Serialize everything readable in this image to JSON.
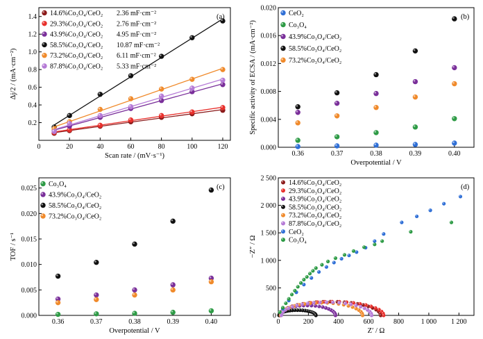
{
  "colors": {
    "c146": "#8b1a1a",
    "c293": "#e8302c",
    "c439": "#7a2f9a",
    "c585": "#111111",
    "c732": "#f08a2b",
    "c878": "#b57ad6",
    "ceo2": "#2f6fd6",
    "co3o4": "#2e9b46"
  },
  "chart_data": [
    {
      "panel": "a",
      "type": "scatter",
      "xlabel": "Scan rate / (mV·s⁻¹)",
      "ylabel": "Δj/2 / (mA·cm⁻²)",
      "xlim": [
        0,
        125
      ],
      "ylim": [
        0,
        1.5
      ],
      "xticks": [
        "0",
        "20",
        "40",
        "60",
        "80",
        "100",
        "120"
      ],
      "yticks": [
        "0.2",
        "0.4",
        "0.6",
        "0.8",
        "1.0",
        "1.2",
        "1.4"
      ],
      "x": [
        10,
        20,
        40,
        60,
        80,
        100,
        120
      ],
      "fit_lines": true,
      "legend_position": "top-left",
      "series": [
        {
          "name": "14.6%Co₃O₄/CeO₂",
          "color_key": "c146",
          "values": [
            0.08,
            0.11,
            0.16,
            0.21,
            0.26,
            0.3,
            0.34
          ],
          "annotation": "2.36 mF·cm⁻²"
        },
        {
          "name": "29.3%Co₃O₄/CeO₂",
          "color_key": "c293",
          "values": [
            0.09,
            0.12,
            0.17,
            0.23,
            0.28,
            0.32,
            0.37
          ],
          "annotation": "2.76 mF·cm⁻²"
        },
        {
          "name": "43.9%Co₃O₄/CeO₂",
          "color_key": "c439",
          "values": [
            0.11,
            0.16,
            0.26,
            0.36,
            0.45,
            0.55,
            0.63
          ],
          "annotation": "4.95 mF·cm⁻²"
        },
        {
          "name": "58.5%Co₃O₄/CeO₂",
          "color_key": "c585",
          "values": [
            0.15,
            0.28,
            0.52,
            0.73,
            0.95,
            1.16,
            1.35
          ],
          "annotation": "10.87 mF·cm⁻²"
        },
        {
          "name": "73.2%Co₃O₄/CeO₂",
          "color_key": "c732",
          "values": [
            0.13,
            0.21,
            0.35,
            0.47,
            0.58,
            0.69,
            0.8
          ],
          "annotation": "6.11 mF·cm⁻²"
        },
        {
          "name": "87.8%Co₃O₄/CeO₂",
          "color_key": "c878",
          "values": [
            0.1,
            0.19,
            0.28,
            0.38,
            0.5,
            0.59,
            0.68
          ],
          "annotation": "5.33 mF·cm⁻²"
        }
      ]
    },
    {
      "panel": "b",
      "type": "scatter",
      "xlabel": "Overpotential / V",
      "ylabel": "Specific activity of ECSA / (mA·cm⁻²)",
      "xlim": [
        0.355,
        0.405
      ],
      "ylim": [
        0,
        0.02
      ],
      "xticks": [
        "0.36",
        "0.37",
        "0.38",
        "0.39",
        "0.40"
      ],
      "yticks": [
        "0.000",
        "0.004",
        "0.008",
        "0.012",
        "0.016",
        "0.020"
      ],
      "x": [
        0.36,
        0.37,
        0.38,
        0.39,
        0.4
      ],
      "legend_position": "top-left",
      "series": [
        {
          "name": "CeO₂",
          "color_key": "ceo2",
          "values": [
            0.0001,
            0.0002,
            0.0003,
            0.0004,
            0.0006
          ]
        },
        {
          "name": "Co₃O₄",
          "color_key": "co3o4",
          "values": [
            0.001,
            0.0015,
            0.0021,
            0.0029,
            0.0041
          ]
        },
        {
          "name": "43.9%Co₃O₄/CeO₂",
          "color_key": "c439",
          "values": [
            0.005,
            0.0063,
            0.0077,
            0.0094,
            0.0114
          ]
        },
        {
          "name": "58.5%Co₃O₄/CeO₂",
          "color_key": "c585",
          "values": [
            0.0058,
            0.0078,
            0.0104,
            0.0138,
            0.0184
          ]
        },
        {
          "name": "73.2%Co₃O₄/CeO₂",
          "color_key": "c732",
          "values": [
            0.0035,
            0.0045,
            0.0057,
            0.0072,
            0.0091
          ]
        }
      ]
    },
    {
      "panel": "c",
      "type": "scatter",
      "xlabel": "Overpotential / V",
      "ylabel": "TOF / s⁻¹",
      "xlim": [
        0.355,
        0.405
      ],
      "ylim": [
        0,
        0.027
      ],
      "xticks": [
        "0.36",
        "0.37",
        "0.38",
        "0.39",
        "0.40"
      ],
      "yticks": [
        "0.000",
        "0.005",
        "0.010",
        "0.015",
        "0.020",
        "0.025"
      ],
      "x": [
        0.36,
        0.37,
        0.38,
        0.39,
        0.4
      ],
      "legend_position": "top-left",
      "series": [
        {
          "name": "Co₃O₄",
          "color_key": "co3o4",
          "values": [
            0.0002,
            0.0003,
            0.0004,
            0.0006,
            0.0009
          ]
        },
        {
          "name": "43.9%Co₃O₄/CeO₂",
          "color_key": "c439",
          "values": [
            0.0032,
            0.004,
            0.005,
            0.006,
            0.0073
          ]
        },
        {
          "name": "58.5%Co₃O₄/CeO₂",
          "color_key": "c585",
          "values": [
            0.0077,
            0.0104,
            0.014,
            0.0185,
            0.0246
          ]
        },
        {
          "name": "73.2%Co₃O₄/CeO₂",
          "color_key": "c732",
          "values": [
            0.0025,
            0.0031,
            0.004,
            0.005,
            0.0066
          ]
        }
      ]
    },
    {
      "panel": "d",
      "type": "scatter",
      "xlabel": "Z′ / Ω",
      "ylabel": "−Z″ / Ω",
      "xlim": [
        0,
        1300
      ],
      "ylim": [
        0,
        2500
      ],
      "xticks": [
        "0",
        "200",
        "400",
        "600",
        "800",
        "1 000",
        "1 200"
      ],
      "yticks": [
        "0",
        "500",
        "1 000",
        "1 500",
        "2 000",
        "2 500"
      ],
      "legend_position": "top-left",
      "series": [
        {
          "name": "14.6%Co₃O₄/CeO₂",
          "color_key": "c146",
          "semicircle": {
            "r0": 10,
            "r1": 680,
            "peak": 250
          }
        },
        {
          "name": "29.3%Co₃O₄/CeO₂",
          "color_key": "c293",
          "semicircle": {
            "r0": 15,
            "r1": 700,
            "peak": 250
          }
        },
        {
          "name": "43.9%Co₃O₄/CeO₂",
          "color_key": "c439",
          "semicircle": {
            "r0": 8,
            "r1": 380,
            "peak": 180
          }
        },
        {
          "name": "58.5%Co₃O₄/CeO₂",
          "color_key": "c585",
          "semicircle": {
            "r0": 5,
            "r1": 250,
            "peak": 95
          }
        },
        {
          "name": "73.2%Co₃O₄/CeO₂",
          "color_key": "c732",
          "semicircle": {
            "r0": 15,
            "r1": 560,
            "peak": 230
          }
        },
        {
          "name": "87.8%Co₃O₄/CeO₂",
          "color_key": "c878",
          "semicircle": {
            "r0": 20,
            "r1": 620,
            "peak": 240
          }
        },
        {
          "name": "CeO₂",
          "color_key": "ceo2",
          "x": [
            30,
            70,
            120,
            170,
            220,
            270,
            320,
            370,
            420,
            470,
            520,
            580,
            640,
            700,
            820,
            920,
            1010,
            1100,
            1210
          ],
          "values": [
            120,
            270,
            420,
            560,
            680,
            790,
            880,
            960,
            1030,
            1090,
            1150,
            1230,
            1350,
            1480,
            1690,
            1800,
            1910,
            2030,
            2160
          ]
        },
        {
          "name": "Co₃O₄",
          "color_key": "co3o4",
          "x": [
            10,
            30,
            50,
            70,
            90,
            110,
            130,
            150,
            170,
            190,
            210,
            230,
            250,
            290,
            330,
            380,
            440,
            500,
            570,
            640,
            690,
            880,
            1150
          ],
          "values": [
            60,
            140,
            220,
            300,
            380,
            450,
            520,
            590,
            650,
            700,
            760,
            810,
            860,
            920,
            980,
            1040,
            1100,
            1170,
            1240,
            1290,
            1350,
            1520,
            1690
          ]
        }
      ]
    }
  ]
}
